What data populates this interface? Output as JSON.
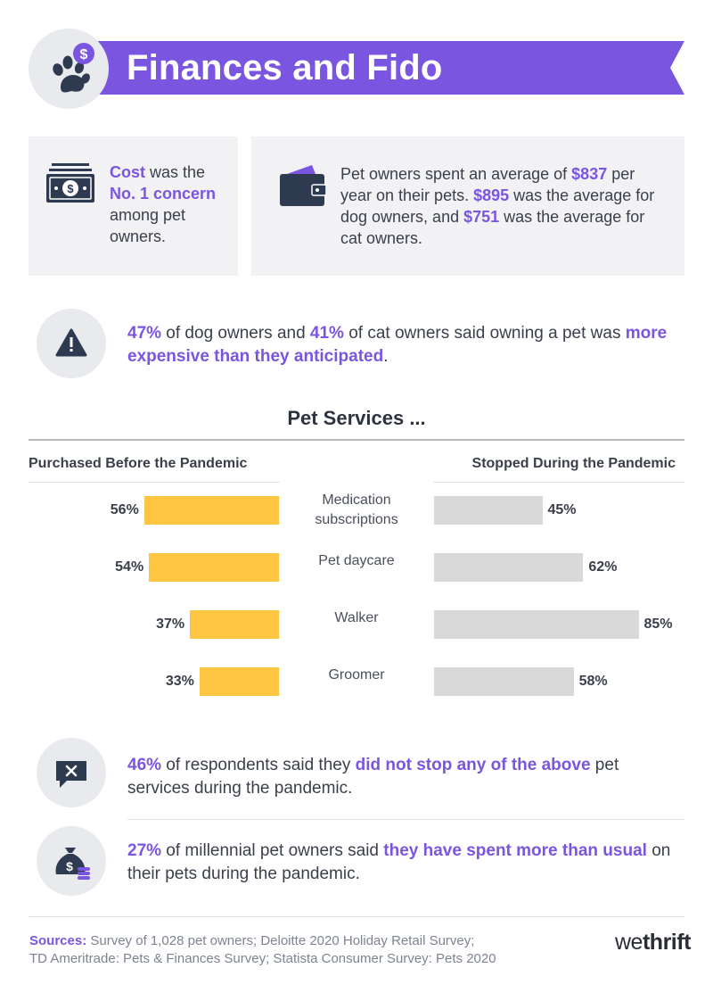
{
  "header": {
    "title": "Finances and Fido",
    "accent_color": "#7a55e0",
    "logo_icon": "paw-dollar-icon"
  },
  "card_cost": {
    "icon": "cash-icon",
    "part1": "Cost",
    "part2": " was the ",
    "part3": "No. 1 concern",
    "part4": " among pet owners."
  },
  "card_spend": {
    "icon": "wallet-icon",
    "part1": "Pet owners spent an average of ",
    "part2": "$837",
    "part3": " per year on their pets. ",
    "part4": "$895",
    "part5": " was the average for dog owners, and ",
    "part6": "$751",
    "part7": " was the average for cat owners."
  },
  "stat_expensive": {
    "icon": "warning-icon",
    "part1": "47%",
    "part2": " of dog owners and ",
    "part3": "41%",
    "part4": " of cat owners said owning a pet was ",
    "part5": "more expensive than they anticipated",
    "part6": "."
  },
  "chart_data": {
    "type": "bar",
    "title": "Pet Services ...",
    "categories": [
      "Medication subscriptions",
      "Pet daycare",
      "Walker",
      "Groomer"
    ],
    "series": [
      {
        "name": "Purchased Before the Pandemic",
        "values": [
          56,
          54,
          37,
          33
        ],
        "color": "#fdc540",
        "labels": [
          "56%",
          "54%",
          "37%",
          "33%"
        ]
      },
      {
        "name": "Stopped During the Pandemic",
        "values": [
          45,
          62,
          85,
          58
        ],
        "color": "#d9d9d9",
        "labels": [
          "45%",
          "62%",
          "85%",
          "58%"
        ]
      }
    ],
    "unit": "%"
  },
  "stat_not_stopped": {
    "icon": "chat-x-icon",
    "part1": "46%",
    "part2": " of respondents said they ",
    "part3": "did not stop any of the above",
    "part4": " pet services during the pandemic."
  },
  "stat_millennial": {
    "icon": "money-bag-icon",
    "part1": "27%",
    "part2": " of millennial pet owners said ",
    "part3": "they have spent more than usual",
    "part4": " on their pets during the pandemic."
  },
  "footer": {
    "sources_label": "Sources:",
    "sources_line1": " Survey of 1,028 pet owners; Deloitte 2020 Holiday Retail Survey;",
    "sources_line2": "TD Ameritrade: Pets & Finances Survey; Statista Consumer Survey: Pets 2020",
    "brand_light": "we",
    "brand_bold": "thrift"
  }
}
